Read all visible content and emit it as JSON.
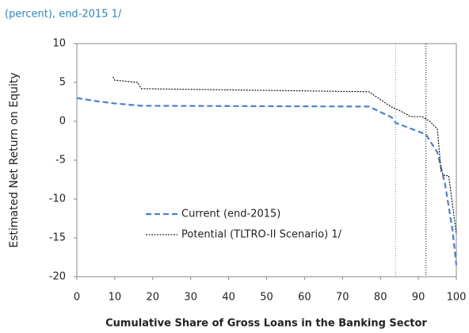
{
  "chart_data": {
    "type": "line",
    "subtitle": "(percent), end-2015 1/",
    "x_label": "Cumulative Share of Gross Loans in the Banking Sector",
    "y_label": "Estimated Net Return on Equity",
    "xlim": [
      0,
      100
    ],
    "xticks": [
      0,
      10,
      20,
      30,
      40,
      50,
      60,
      70,
      80,
      90,
      100
    ],
    "ylim": [
      -20,
      10
    ],
    "yticks": [
      -20,
      -15,
      -10,
      -5,
      0,
      5,
      10
    ],
    "reference_lines": [
      {
        "x": 84,
        "color": "#5b9bd5"
      },
      {
        "x": 92,
        "color": "#000000"
      }
    ],
    "series": [
      {
        "name": "Current (end-2015)",
        "color": "#4a7fd4",
        "line_style": "dashed",
        "x": [
          0,
          5,
          10,
          17,
          77,
          83,
          84,
          91,
          92,
          95,
          97,
          99,
          100
        ],
        "values": [
          3,
          2.6,
          2.3,
          2.0,
          1.9,
          0.5,
          -0.2,
          -1.5,
          -1.7,
          -4,
          -8,
          -14,
          -18.5
        ]
      },
      {
        "name": "Potential (TLTRO-II Scenario) 1/",
        "color": "#000000",
        "line_style": "dotted",
        "x": [
          9.5,
          10,
          16,
          17,
          77,
          83,
          85,
          88,
          91,
          92,
          93,
          95,
          96,
          97,
          98,
          100
        ],
        "values": [
          5.7,
          5.3,
          5.0,
          4.2,
          3.8,
          1.8,
          1.4,
          0.6,
          0.6,
          0.3,
          0,
          -1,
          -6.5,
          -7,
          -7,
          -14.5
        ]
      }
    ],
    "legend": "lower left"
  }
}
